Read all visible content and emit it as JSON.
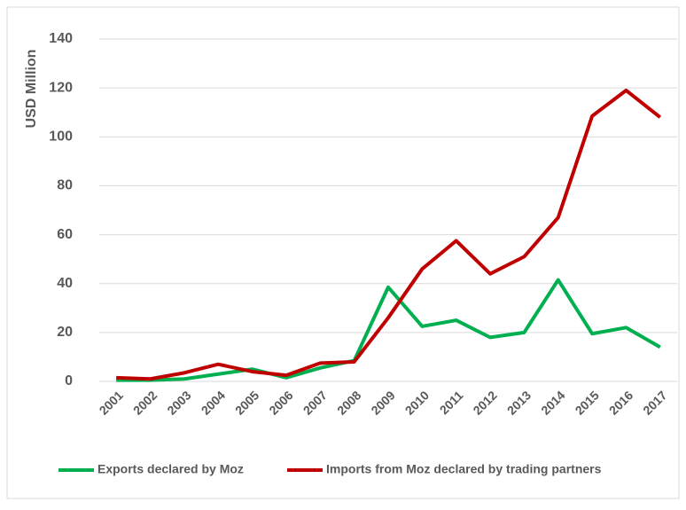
{
  "chart_data": {
    "type": "line",
    "y_label": "USD Million",
    "categories": [
      "2001",
      "2002",
      "2003",
      "2004",
      "2005",
      "2006",
      "2007",
      "2008",
      "2009",
      "2010",
      "2011",
      "2012",
      "2013",
      "2014",
      "2015",
      "2016",
      "2017"
    ],
    "series": [
      {
        "name": "Exports declared by Moz",
        "color": "#00b050",
        "values": [
          0.5,
          0.5,
          1,
          3,
          5,
          1.5,
          5.5,
          8.5,
          38.5,
          22.5,
          25,
          18,
          20,
          41.5,
          19.5,
          22,
          14
        ]
      },
      {
        "name": "Imports from Moz declared by trading partners",
        "color": "#c00000",
        "values": [
          1.5,
          1,
          3.5,
          7,
          4,
          2.5,
          7.5,
          8,
          26,
          46,
          57.5,
          44,
          51,
          67,
          108.5,
          119,
          108
        ]
      }
    ],
    "ylim": [
      0,
      140
    ],
    "yticks": [
      0,
      20,
      40,
      60,
      80,
      100,
      120,
      140
    ],
    "grid": true
  }
}
